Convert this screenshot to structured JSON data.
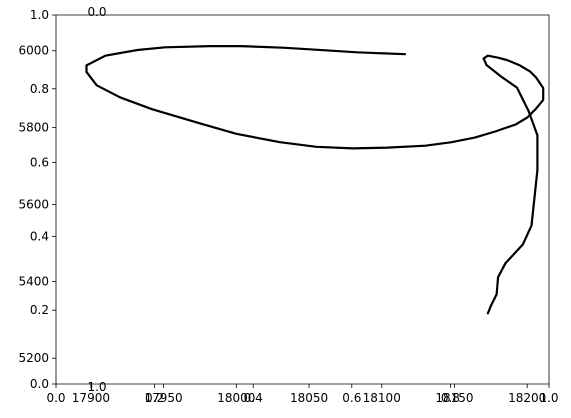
{
  "chart_data": {
    "type": "line",
    "title": "",
    "xlabel": "",
    "ylabel": "",
    "axes": {
      "ghost_left_ticks": [
        "0.0",
        "0.2",
        "0.4",
        "0.6",
        "0.8",
        "1.0"
      ],
      "ghost_left_range": [
        0,
        1
      ],
      "ghost_bottom_ticks": [
        "0.0",
        "0.2",
        "0.4",
        "0.6",
        "0.8",
        "1.0"
      ],
      "ghost_bottom_range": [
        0,
        1
      ],
      "ghost_top_label": "0.0",
      "ghost_inner_label": "1.0",
      "data_y_ticks": [
        "5200",
        "5400",
        "5600",
        "5800",
        "6000"
      ],
      "data_y_tick_values": [
        5200,
        5400,
        5600,
        5800,
        6000
      ],
      "data_y_range": [
        5133,
        6093
      ],
      "data_x_ticks": [
        "17900",
        "17950",
        "18000",
        "18050",
        "18100",
        "18150",
        "18200"
      ],
      "data_x_tick_values": [
        17900,
        17950,
        18000,
        18050,
        18100,
        18150,
        18200
      ],
      "data_x_range": [
        17876,
        18215
      ]
    },
    "series": [
      {
        "color": "#000000",
        "points": [
          [
            18116,
            5991
          ],
          [
            18102,
            5993
          ],
          [
            18083,
            5996
          ],
          [
            18049,
            6004
          ],
          [
            18032,
            6008
          ],
          [
            18003,
            6012
          ],
          [
            17982,
            6012
          ],
          [
            17951,
            6009
          ],
          [
            17932,
            6002
          ],
          [
            17910,
            5987
          ],
          [
            17897,
            5962
          ],
          [
            17897,
            5945
          ],
          [
            17904,
            5910
          ],
          [
            17920,
            5879
          ],
          [
            17942,
            5848
          ],
          [
            17976,
            5810
          ],
          [
            18000,
            5784
          ],
          [
            18030,
            5762
          ],
          [
            18055,
            5750
          ],
          [
            18080,
            5746
          ],
          [
            18104,
            5748
          ],
          [
            18130,
            5753
          ],
          [
            18148,
            5762
          ],
          [
            18164,
            5774
          ],
          [
            18178,
            5790
          ],
          [
            18192,
            5808
          ],
          [
            18200,
            5826
          ],
          [
            18206,
            5849
          ],
          [
            18211,
            5872
          ],
          [
            18211,
            5903
          ],
          [
            18206,
            5931
          ],
          [
            18202,
            5946
          ],
          [
            18195,
            5962
          ],
          [
            18186,
            5976
          ],
          [
            18180,
            5982
          ],
          [
            18173,
            5987
          ],
          [
            18170,
            5980
          ],
          [
            18172,
            5963
          ],
          [
            18182,
            5933
          ],
          [
            18193,
            5904
          ],
          [
            18201,
            5843
          ],
          [
            18207,
            5780
          ],
          [
            18207,
            5689
          ],
          [
            18203,
            5545
          ],
          [
            18197,
            5496
          ],
          [
            18185,
            5447
          ],
          [
            18180,
            5411
          ],
          [
            18179,
            5366
          ],
          [
            18175,
            5336
          ],
          [
            18173,
            5317
          ]
        ]
      }
    ]
  }
}
